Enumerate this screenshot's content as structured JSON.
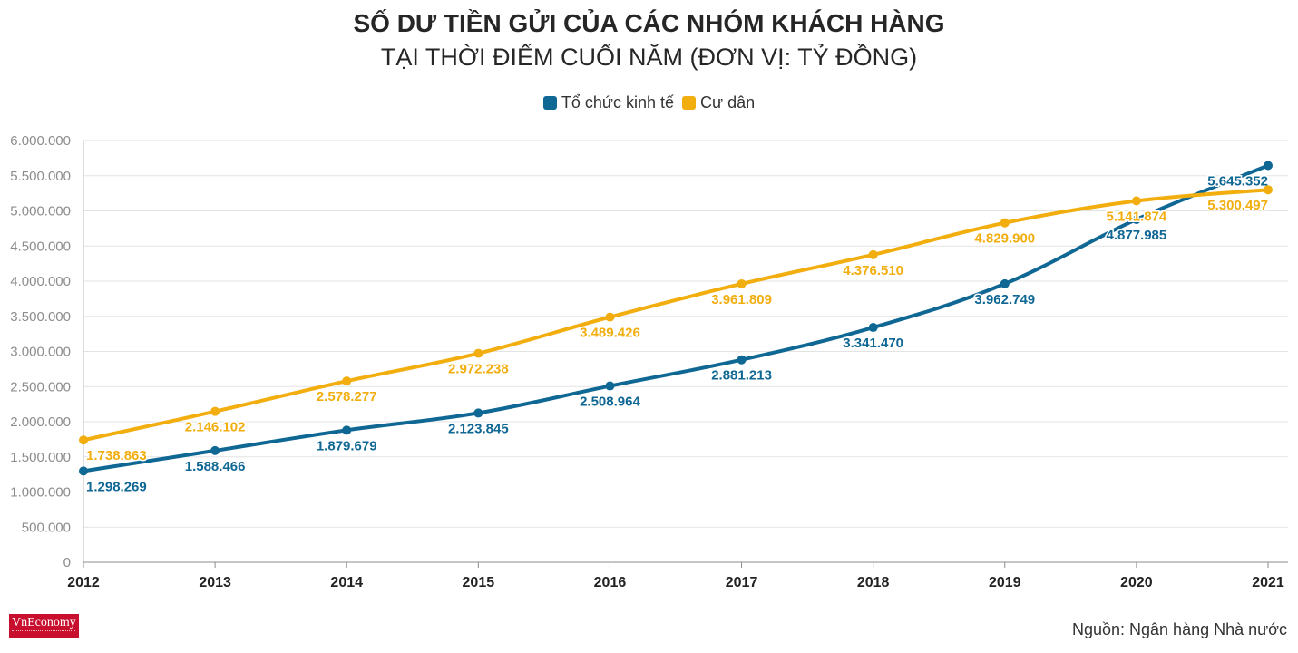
{
  "header": {
    "title_line1": "SỐ DƯ TIỀN GỬI CỦA CÁC NHÓM KHÁCH HÀNG",
    "title_line2": "TẠI THỜI ĐIỂM CUỐI NĂM (ĐƠN VỊ: TỶ ĐỒNG)"
  },
  "footer": {
    "logo_text": "VnEconomy",
    "source": "Nguồn: Ngân hàng Nhà nước"
  },
  "chart_data": {
    "type": "line",
    "title": "SỐ DƯ TIỀN GỬI CỦA CÁC NHÓM KHÁCH HÀNG TẠI THỜI ĐIỂM CUỐI NĂM (ĐƠN VỊ: TỶ ĐỒNG)",
    "categories": [
      "2012",
      "2013",
      "2014",
      "2015",
      "2016",
      "2017",
      "2018",
      "2019",
      "2020",
      "2021"
    ],
    "series": [
      {
        "name": "Tổ chức kinh tế",
        "color": "#0f6794",
        "values": [
          1298269,
          1588466,
          1879679,
          2123845,
          2508964,
          2881213,
          3341470,
          3962749,
          4877985,
          5645352
        ],
        "labels": [
          "1.298.269",
          "1.588.466",
          "1.879.679",
          "2.123.845",
          "2.508.964",
          "2.881.213",
          "3.341.470",
          "3.962.749",
          "4.877.985",
          "5.645.352"
        ]
      },
      {
        "name": "Cư dân",
        "color": "#f2ae0f",
        "values": [
          1738863,
          2146102,
          2578277,
          2972238,
          3489426,
          3961809,
          4376510,
          4829900,
          5141874,
          5300497
        ],
        "labels": [
          "1.738.863",
          "2.146.102",
          "2.578.277",
          "2.972.238",
          "3.489.426",
          "3.961.809",
          "4.376.510",
          "4.829.900",
          "5.141.874",
          "5.300.497"
        ]
      }
    ],
    "yticks": [
      0,
      500000,
      1000000,
      1500000,
      2000000,
      2500000,
      3000000,
      3500000,
      4000000,
      4500000,
      5000000,
      5500000,
      6000000
    ],
    "ytick_labels": [
      "0",
      "500.000",
      "1.000.000",
      "1.500.000",
      "2.000.000",
      "2.500.000",
      "3.000.000",
      "3.500.000",
      "4.000.000",
      "4.500.000",
      "5.000.000",
      "5.500.000",
      "6.000.000"
    ],
    "ylim": [
      0,
      6000000
    ],
    "grid": true,
    "legend_position": "top-center"
  }
}
